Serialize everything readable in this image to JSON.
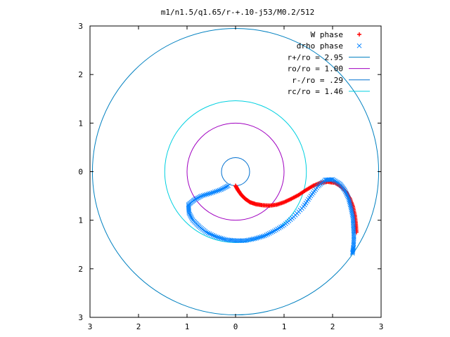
{
  "chart_data": {
    "type": "scatter",
    "title": "m1/n1.5/q1.65/r-+.10-j53/M0.2/512",
    "xlabel": "",
    "ylabel": "",
    "xlim": [
      -3,
      3
    ],
    "ylim": [
      -3,
      3
    ],
    "x_tick_values": [
      -3,
      -2,
      -1,
      0,
      1,
      2,
      3
    ],
    "x_tick_labels": [
      "3",
      "2",
      "1",
      "0",
      "1",
      "2",
      "3"
    ],
    "y_tick_values": [
      3,
      2,
      1,
      0,
      -1,
      -2,
      -3
    ],
    "y_tick_labels": [
      "3",
      "2",
      "1",
      "0",
      "1",
      "2",
      "3"
    ],
    "grid": false,
    "legend_position": "top-right",
    "legend": [
      {
        "label": "W phase",
        "marker": "+",
        "color": "#ff0000"
      },
      {
        "label": "drho phase",
        "marker": "x",
        "color": "#0080ff"
      },
      {
        "label": "r+/ro = 2.95",
        "marker": "line",
        "color": "#0080c0"
      },
      {
        "label": "ro/ro = 1.00",
        "marker": "line",
        "color": "#a000c0"
      },
      {
        "label": "r-/ro = .29",
        "marker": "line",
        "color": "#0070d0"
      },
      {
        "label": "rc/ro = 1.46",
        "marker": "line",
        "color": "#00d0e0"
      }
    ],
    "circles": [
      {
        "name": "r+/ro",
        "radius": 2.95,
        "color": "#0080c0"
      },
      {
        "name": "ro/ro",
        "radius": 1.0,
        "color": "#a000c0"
      },
      {
        "name": "r-/ro",
        "radius": 0.29,
        "color": "#0070d0"
      },
      {
        "name": "rc/ro",
        "radius": 1.46,
        "color": "#00d0e0"
      }
    ],
    "series": [
      {
        "name": "W phase",
        "marker": "+",
        "color": "#ff0000",
        "points": [
          [
            0.0,
            -0.29
          ],
          [
            0.05,
            -0.38
          ],
          [
            0.12,
            -0.48
          ],
          [
            0.2,
            -0.56
          ],
          [
            0.3,
            -0.63
          ],
          [
            0.42,
            -0.67
          ],
          [
            0.55,
            -0.69
          ],
          [
            0.7,
            -0.7
          ],
          [
            0.85,
            -0.68
          ],
          [
            1.0,
            -0.63
          ],
          [
            1.15,
            -0.56
          ],
          [
            1.3,
            -0.48
          ],
          [
            1.45,
            -0.38
          ],
          [
            1.6,
            -0.29
          ],
          [
            1.75,
            -0.23
          ],
          [
            1.9,
            -0.21
          ],
          [
            2.05,
            -0.23
          ],
          [
            2.18,
            -0.31
          ],
          [
            2.28,
            -0.42
          ],
          [
            2.36,
            -0.56
          ],
          [
            2.42,
            -0.72
          ],
          [
            2.46,
            -0.9
          ],
          [
            2.48,
            -1.08
          ],
          [
            2.49,
            -1.25
          ]
        ]
      },
      {
        "name": "drho phase",
        "marker": "x",
        "color": "#0080ff",
        "points": [
          [
            -0.15,
            -0.29
          ],
          [
            -0.3,
            -0.37
          ],
          [
            -0.5,
            -0.44
          ],
          [
            -0.7,
            -0.5
          ],
          [
            -0.85,
            -0.58
          ],
          [
            -0.97,
            -0.68
          ],
          [
            -0.96,
            -0.85
          ],
          [
            -0.88,
            -1.0
          ],
          [
            -0.75,
            -1.13
          ],
          [
            -0.6,
            -1.25
          ],
          [
            -0.4,
            -1.34
          ],
          [
            -0.2,
            -1.4
          ],
          [
            0.0,
            -1.42
          ],
          [
            0.2,
            -1.42
          ],
          [
            0.4,
            -1.38
          ],
          [
            0.6,
            -1.32
          ],
          [
            0.8,
            -1.22
          ],
          [
            1.0,
            -1.1
          ],
          [
            1.2,
            -0.93
          ],
          [
            1.4,
            -0.72
          ],
          [
            1.55,
            -0.5
          ],
          [
            1.7,
            -0.3
          ],
          [
            1.85,
            -0.17
          ],
          [
            2.0,
            -0.16
          ],
          [
            2.15,
            -0.25
          ],
          [
            2.25,
            -0.38
          ],
          [
            2.33,
            -0.55
          ],
          [
            2.38,
            -0.75
          ],
          [
            2.42,
            -0.95
          ],
          [
            2.43,
            -1.15
          ],
          [
            2.44,
            -1.35
          ],
          [
            2.43,
            -1.55
          ],
          [
            2.41,
            -1.68
          ]
        ]
      }
    ]
  }
}
